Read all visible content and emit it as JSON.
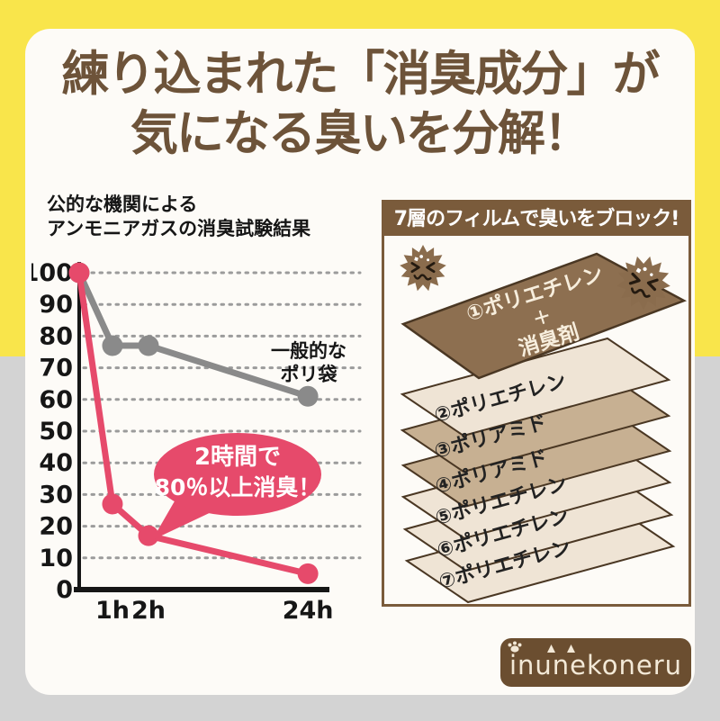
{
  "page": {
    "bg_top_color": "#F9E54B",
    "bg_bottom_color": "#D3D3D3",
    "card_color": "#FDFBF7"
  },
  "title": {
    "line1": "練り込まれた「消臭成分」が",
    "line2": "気になる臭いを分解！",
    "color": "#6D5339"
  },
  "chart_data": {
    "type": "line",
    "title_line1": "公的な機関による",
    "title_line2": "アンモニアガスの消臭試験結果",
    "x_values": [
      "0",
      "1h",
      "2h",
      "24h"
    ],
    "x_labels": [
      "1h",
      "2h",
      "24h"
    ],
    "yticks": [
      100,
      90,
      80,
      70,
      60,
      50,
      40,
      30,
      20,
      10,
      0
    ],
    "ylim": [
      0,
      100
    ],
    "grid": "dotted-horizontal",
    "series": [
      {
        "name": "general-poly-bag",
        "legend_line1": "一般的な",
        "legend_line2": "ポリ袋",
        "color": "#8A8A8A",
        "values": [
          100,
          77,
          77,
          61
        ]
      },
      {
        "name": "deodorant-film-bag",
        "color": "#E64A6B",
        "values": [
          100,
          27,
          17,
          5
        ]
      }
    ],
    "annotation": {
      "line1": "2時間で",
      "line2": "80％以上消臭！",
      "bubble_color": "#E64A6B",
      "text_color": "#FFFFFF",
      "points_to": "2h"
    }
  },
  "panel": {
    "header": "7層のフィルムで臭いをブロック!",
    "header_bg": "#7A5B3B",
    "stink_icon_color": "#8A6C4D",
    "layers": [
      {
        "label": "①ポリエチレン",
        "sub1": "＋",
        "sub2": "消臭剤",
        "fill": "#8D6F50",
        "text_color": "#F7EEDD"
      },
      {
        "label": "②ポリエチレン",
        "fill": "#EFE4D5"
      },
      {
        "label": "③ポリアミド",
        "fill": "#C7B092"
      },
      {
        "label": "④ポリアミド",
        "fill": "#C7B092"
      },
      {
        "label": "⑤ポリエチレン",
        "fill": "#EFE4D5"
      },
      {
        "label": "⑥ポリエチレン",
        "fill": "#EFE4D5"
      },
      {
        "label": "⑦ポリエチレン",
        "fill": "#EFE4D5"
      }
    ]
  },
  "logo": {
    "text": "inunekoneru",
    "bg": "#6B4E30",
    "text_color": "#F3E9D7"
  }
}
